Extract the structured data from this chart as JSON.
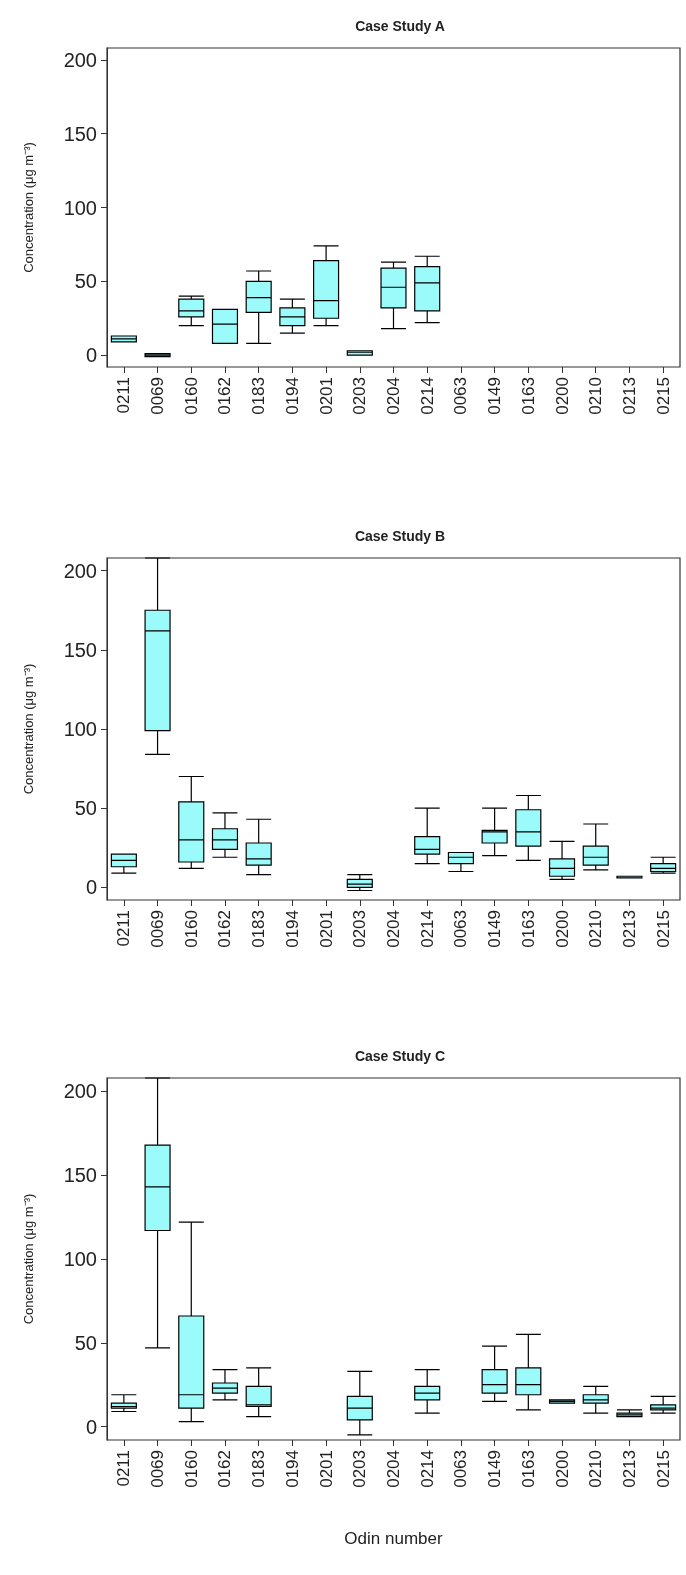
{
  "chart_data": [
    {
      "type": "box",
      "title": "Case Study A",
      "ylabel": "Concentration (μg m⁻³)",
      "categories": [
        "0211",
        "0069",
        "0160",
        "0162",
        "0183",
        "0194",
        "0201",
        "0203",
        "0204",
        "0214",
        "0063",
        "0149",
        "0163",
        "0200",
        "0210",
        "0213",
        "0215"
      ],
      "ylim": [
        -8,
        208
      ],
      "yticks": [
        0,
        50,
        100,
        150,
        200
      ],
      "color": "#9bfbfb",
      "boxes": [
        {
          "low": 9,
          "q1": 9,
          "median": 11,
          "q3": 13,
          "high": 13
        },
        {
          "low": -1,
          "q1": -1,
          "median": 0,
          "q3": 1,
          "high": 1
        },
        {
          "low": 20,
          "q1": 26,
          "median": 30,
          "q3": 38,
          "high": 40
        },
        {
          "low": 8,
          "q1": 8,
          "median": 21,
          "q3": 31,
          "high": 31
        },
        {
          "low": 8,
          "q1": 29,
          "median": 39,
          "q3": 50,
          "high": 57
        },
        {
          "low": 15,
          "q1": 20,
          "median": 26,
          "q3": 32,
          "high": 38
        },
        {
          "low": 20,
          "q1": 25,
          "median": 37,
          "q3": 64,
          "high": 74
        },
        {
          "low": 0,
          "q1": 0,
          "median": 2,
          "q3": 3,
          "high": 3
        },
        {
          "low": 18,
          "q1": 32,
          "median": 46,
          "q3": 59,
          "high": 63
        },
        {
          "low": 22,
          "q1": 30,
          "median": 49,
          "q3": 60,
          "high": 67
        },
        null,
        null,
        null,
        null,
        null,
        null,
        null
      ]
    },
    {
      "type": "box",
      "title": "Case Study B",
      "ylabel": "Concentration (μg m⁻³)",
      "categories": [
        "0211",
        "0069",
        "0160",
        "0162",
        "0183",
        "0194",
        "0201",
        "0203",
        "0204",
        "0214",
        "0063",
        "0149",
        "0163",
        "0200",
        "0210",
        "0213",
        "0215"
      ],
      "ylim": [
        -8,
        208
      ],
      "yticks": [
        0,
        50,
        100,
        150,
        200
      ],
      "color": "#9bfbfb",
      "boxes": [
        {
          "low": 9,
          "q1": 13,
          "median": 17,
          "q3": 21,
          "high": 21
        },
        {
          "low": 84,
          "q1": 99,
          "median": 162,
          "q3": 175,
          "high": 208
        },
        {
          "low": 12,
          "q1": 16,
          "median": 30,
          "q3": 54,
          "high": 70
        },
        {
          "low": 19,
          "q1": 24,
          "median": 30,
          "q3": 37,
          "high": 47
        },
        {
          "low": 8,
          "q1": 14,
          "median": 18,
          "q3": 28,
          "high": 43
        },
        null,
        null,
        {
          "low": -2,
          "q1": 0,
          "median": 2,
          "q3": 5,
          "high": 8
        },
        null,
        {
          "low": 15,
          "q1": 21,
          "median": 24,
          "q3": 32,
          "high": 50
        },
        {
          "low": 10,
          "q1": 15,
          "median": 19,
          "q3": 22,
          "high": 22
        },
        {
          "low": 20,
          "q1": 28,
          "median": 35,
          "q3": 36,
          "high": 50
        },
        {
          "low": 17,
          "q1": 26,
          "median": 35,
          "q3": 49,
          "high": 58
        },
        {
          "low": 5,
          "q1": 7,
          "median": 12,
          "q3": 18,
          "high": 29
        },
        {
          "low": 11,
          "q1": 14,
          "median": 19,
          "q3": 26,
          "high": 40
        },
        {
          "low": 6,
          "q1": 6,
          "median": 7,
          "q3": 7,
          "high": 7
        },
        {
          "low": 9,
          "q1": 10,
          "median": 12,
          "q3": 15,
          "high": 19
        }
      ]
    },
    {
      "type": "box",
      "title": "Case Study C",
      "ylabel": "Concentration (μg m⁻³)",
      "xlabel": "Odin number",
      "categories": [
        "0211",
        "0069",
        "0160",
        "0162",
        "0183",
        "0194",
        "0201",
        "0203",
        "0204",
        "0214",
        "0063",
        "0149",
        "0163",
        "0200",
        "0210",
        "0213",
        "0215"
      ],
      "ylim": [
        -8,
        208
      ],
      "yticks": [
        0,
        50,
        100,
        150,
        200
      ],
      "color": "#9bfbfb",
      "boxes": [
        {
          "low": 9,
          "q1": 11,
          "median": 12,
          "q3": 14,
          "high": 19
        },
        {
          "low": 47,
          "q1": 117,
          "median": 143,
          "q3": 168,
          "high": 208
        },
        {
          "low": 3,
          "q1": 11,
          "median": 19,
          "q3": 66,
          "high": 122
        },
        {
          "low": 16,
          "q1": 20,
          "median": 23,
          "q3": 26,
          "high": 34
        },
        {
          "low": 6,
          "q1": 12,
          "median": 13,
          "q3": 24,
          "high": 35
        },
        null,
        null,
        {
          "low": -5,
          "q1": 4,
          "median": 11,
          "q3": 18,
          "high": 33
        },
        null,
        {
          "low": 8,
          "q1": 16,
          "median": 20,
          "q3": 24,
          "high": 34
        },
        null,
        {
          "low": 15,
          "q1": 20,
          "median": 25,
          "q3": 34,
          "high": 48
        },
        {
          "low": 10,
          "q1": 19,
          "median": 25,
          "q3": 35,
          "high": 55
        },
        {
          "low": 14,
          "q1": 14,
          "median": 15,
          "q3": 16,
          "high": 16
        },
        {
          "low": 8,
          "q1": 14,
          "median": 16,
          "q3": 19,
          "high": 24
        },
        {
          "low": 6,
          "q1": 6,
          "median": 7,
          "q3": 8,
          "high": 10
        },
        {
          "low": 8,
          "q1": 10,
          "median": 11,
          "q3": 13,
          "high": 18
        }
      ]
    }
  ]
}
